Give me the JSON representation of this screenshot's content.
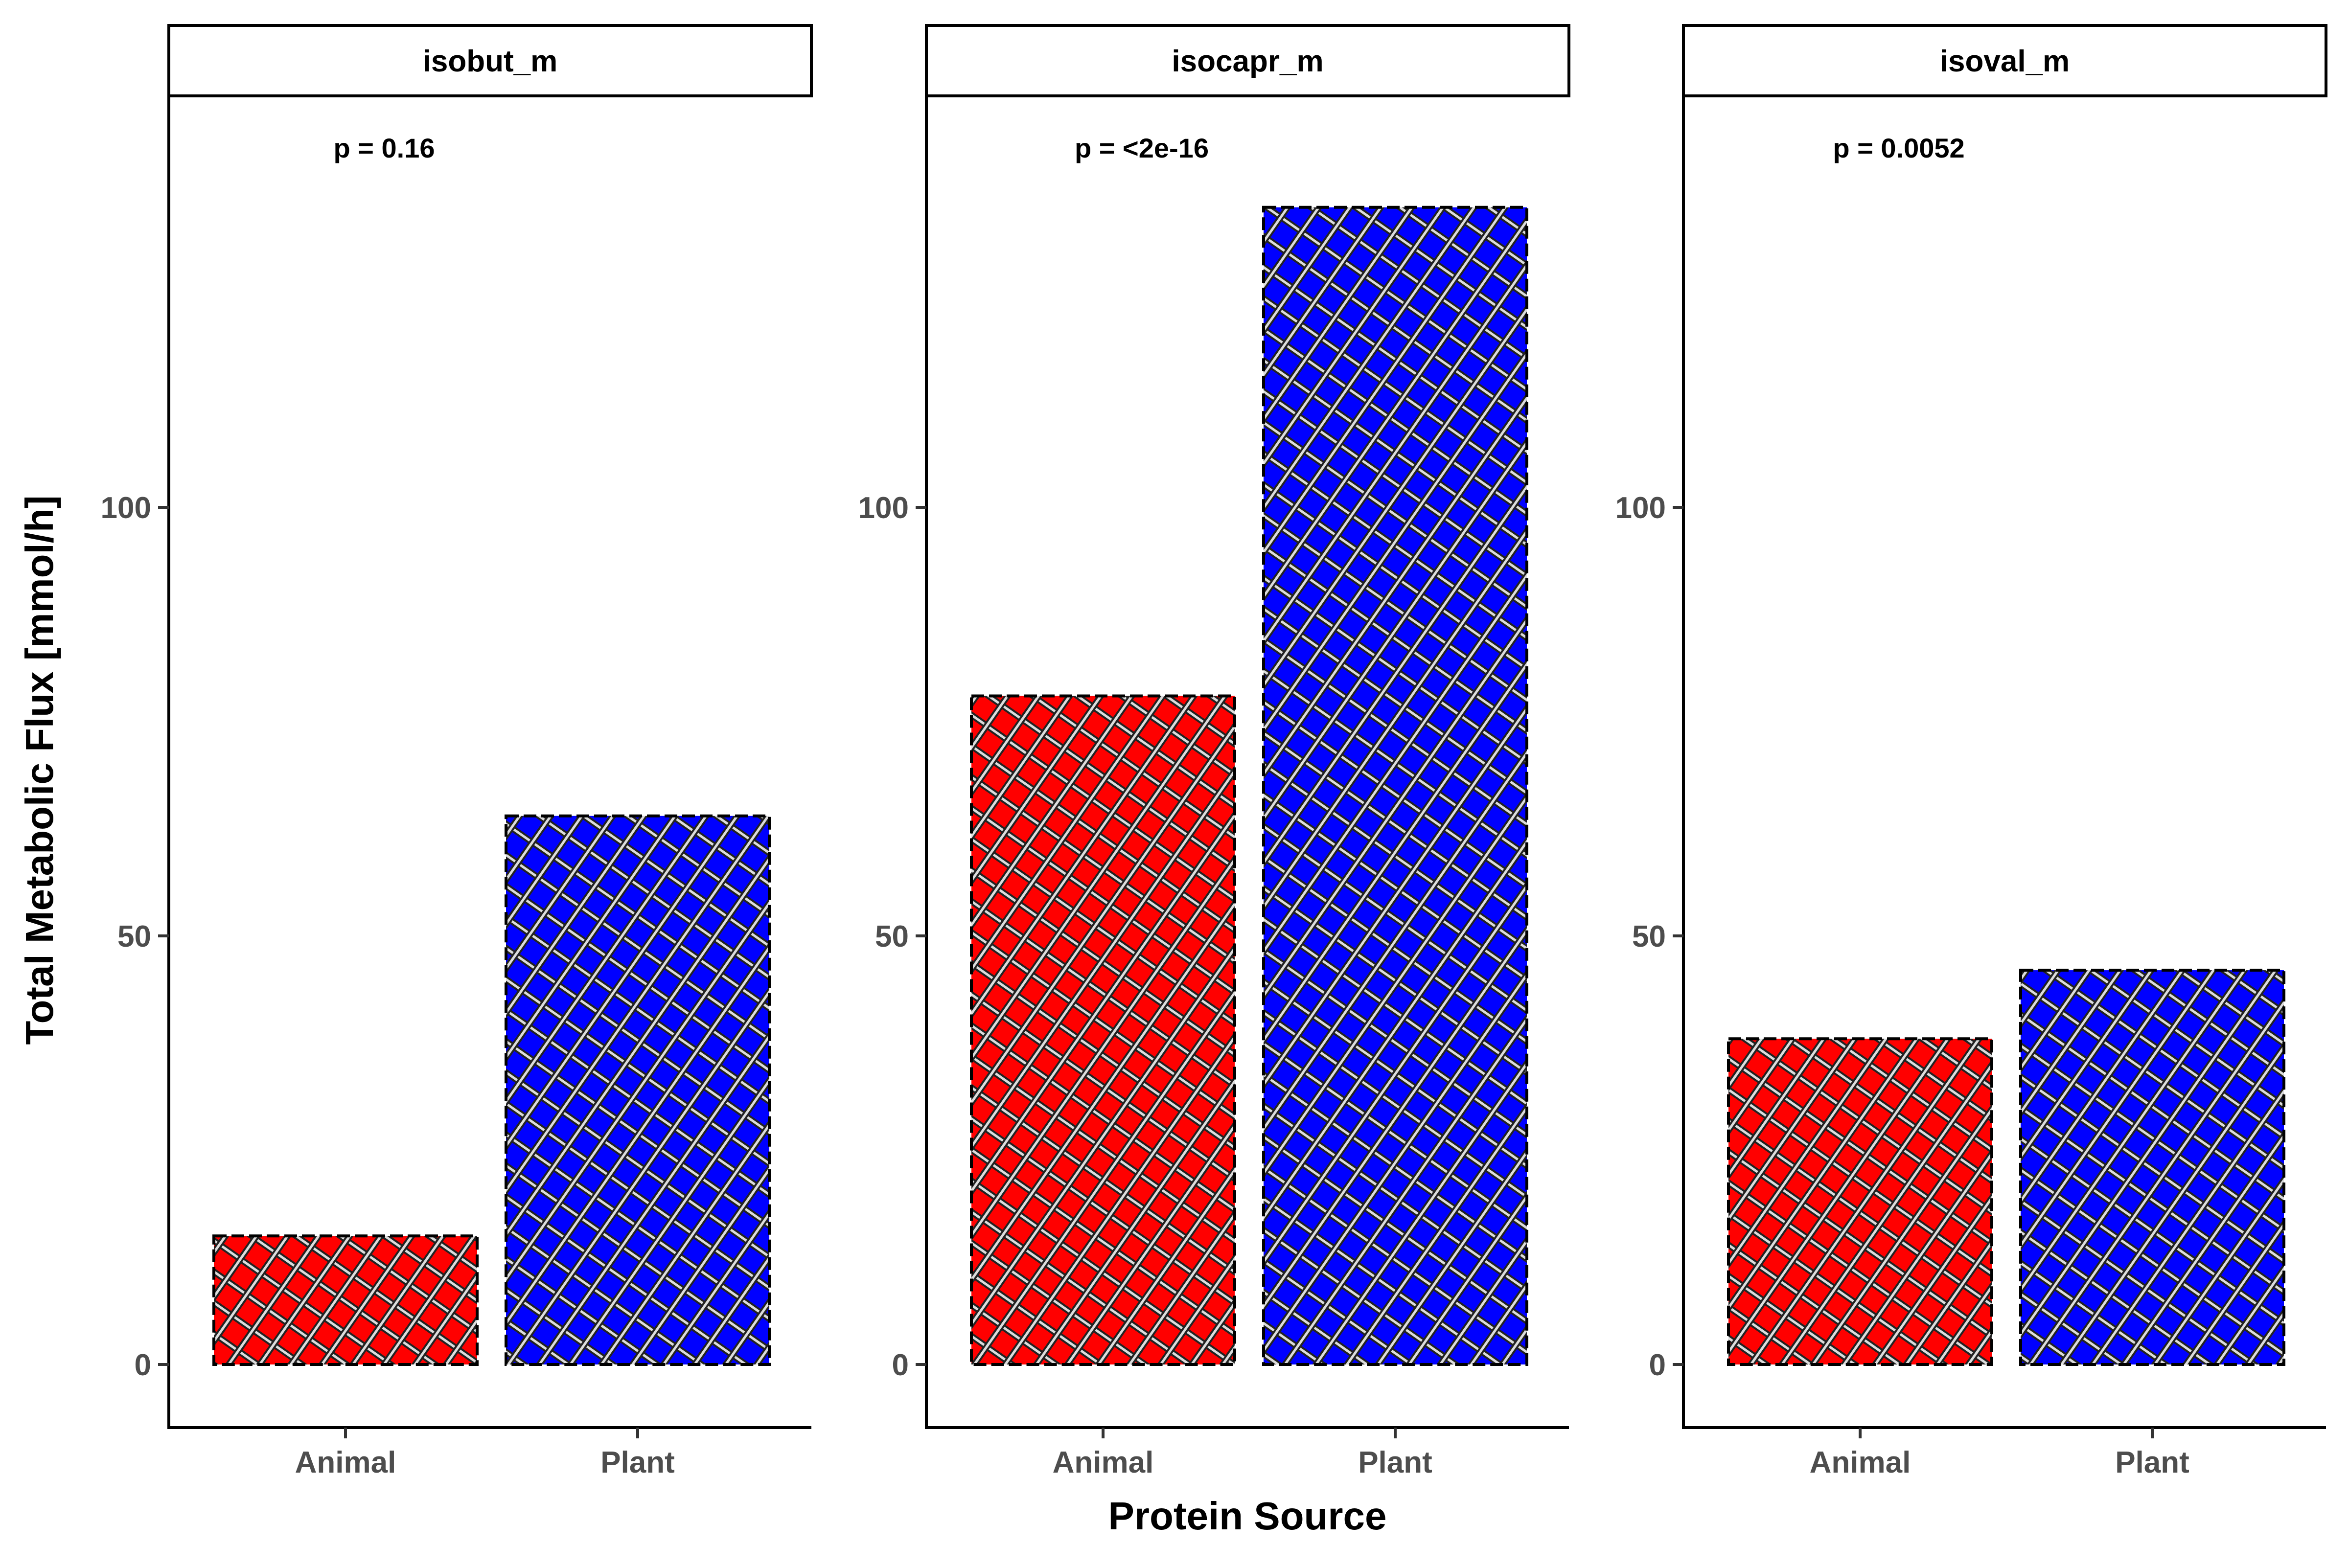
{
  "chart_data": {
    "type": "bar",
    "xlabel": "Protein Source",
    "ylabel": "Total Metabolic Flux [mmol/h]",
    "categories": [
      "Animal",
      "Plant"
    ],
    "ylim": [
      -2,
      143
    ],
    "yticks": [
      0,
      50,
      100
    ],
    "colors": {
      "Animal": "#ff0000",
      "Plant": "#0000ff"
    },
    "pattern": "crosshatch (dark grey/white diagonal stripes)",
    "grid": false,
    "legend": "none",
    "facets": [
      {
        "title": "isobut_m",
        "p_label": "p = 0.16",
        "values": [
          15,
          64
        ]
      },
      {
        "title": "isocapr_m",
        "p_label": "p = <2e-16",
        "values": [
          78,
          135
        ]
      },
      {
        "title": "isoval_m",
        "p_label": "p = 0.0052",
        "values": [
          38,
          46
        ]
      }
    ]
  }
}
